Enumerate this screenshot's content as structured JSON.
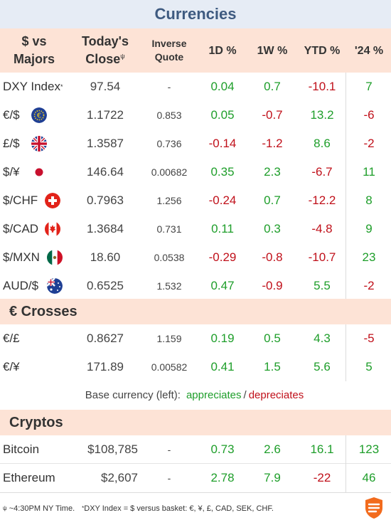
{
  "title": "Currencies",
  "header": {
    "col1_line1": "$ vs",
    "col1_line2": "Majors",
    "col2_line1": "Today's",
    "col2_line2": "Close",
    "col2_mark": "ψ",
    "col3_line1": "Inverse",
    "col3_line2": "Quote",
    "col4": "1D %",
    "col5": "1W %",
    "col6": "YTD %",
    "col7": "'24 %"
  },
  "majors": [
    {
      "label": "DXY Index",
      "mark": "*",
      "flag": "none",
      "close": "97.54",
      "inverse": "-",
      "d1": "0.04",
      "w1": "0.7",
      "ytd": "-10.1",
      "y24": "7"
    },
    {
      "label": "€/$",
      "flag": "eu-flag-icon",
      "close": "1.1722",
      "inverse": "0.853",
      "d1": "0.05",
      "w1": "-0.7",
      "ytd": "13.2",
      "y24": "-6"
    },
    {
      "label": "£/$",
      "flag": "uk-flag-icon",
      "close": "1.3587",
      "inverse": "0.736",
      "d1": "-0.14",
      "w1": "-1.2",
      "ytd": "8.6",
      "y24": "-2"
    },
    {
      "label": "$/¥",
      "flag": "japan-flag-icon",
      "close": "146.64",
      "inverse": "0.00682",
      "d1": "0.35",
      "w1": "2.3",
      "ytd": "-6.7",
      "y24": "11"
    },
    {
      "label": "$/CHF",
      "flag": "swiss-flag-icon",
      "close": "0.7963",
      "inverse": "1.256",
      "d1": "-0.24",
      "w1": "0.7",
      "ytd": "-12.2",
      "y24": "8"
    },
    {
      "label": "$/CAD",
      "flag": "canada-flag-icon",
      "close": "1.3684",
      "inverse": "0.731",
      "d1": "0.11",
      "w1": "0.3",
      "ytd": "-4.8",
      "y24": "9"
    },
    {
      "label": "$/MXN",
      "flag": "mexico-flag-icon",
      "close": "18.60",
      "inverse": "0.0538",
      "d1": "-0.29",
      "w1": "-0.8",
      "ytd": "-10.7",
      "y24": "23"
    },
    {
      "label": "AUD/$",
      "flag": "australia-flag-icon",
      "close": "0.6525",
      "inverse": "1.532",
      "d1": "0.47",
      "w1": "-0.9",
      "ytd": "5.5",
      "y24": "-2"
    }
  ],
  "crosses_title": "€ Crosses",
  "crosses": [
    {
      "label": "€/£",
      "close": "0.8627",
      "inverse": "1.159",
      "d1": "0.19",
      "w1": "0.5",
      "ytd": "4.3",
      "y24": "-5"
    },
    {
      "label": "€/¥",
      "close": "171.89",
      "inverse": "0.00582",
      "d1": "0.41",
      "w1": "1.5",
      "ytd": "5.6",
      "y24": "5"
    }
  ],
  "legend": {
    "prefix": "Base currency (left):",
    "appreciates": "appreciates",
    "separator": "/",
    "depreciates": "depreciates"
  },
  "cryptos_title": "Cryptos",
  "cryptos": [
    {
      "label": "Bitcoin",
      "close": "$108,785",
      "inverse": "-",
      "d1": "0.73",
      "w1": "2.6",
      "ytd": "16.1",
      "y24": "123"
    },
    {
      "label": "Ethereum",
      "close": "$2,607",
      "inverse": "-",
      "d1": "2.78",
      "w1": "7.9",
      "ytd": "-22",
      "y24": "46"
    }
  ],
  "footer": {
    "mark1": "ψ",
    "note1": "~4:30PM NY Time.",
    "mark2": "*",
    "note2": "DXY Index = $ versus basket: €, ¥, £, CAD, SEK, CHF."
  },
  "colors": {
    "positive": "#1e9e2a",
    "negative": "#c0101a",
    "title_bg": "#e6ecf5",
    "header_bg": "#fde3d6",
    "logo": "#f26b1d"
  }
}
